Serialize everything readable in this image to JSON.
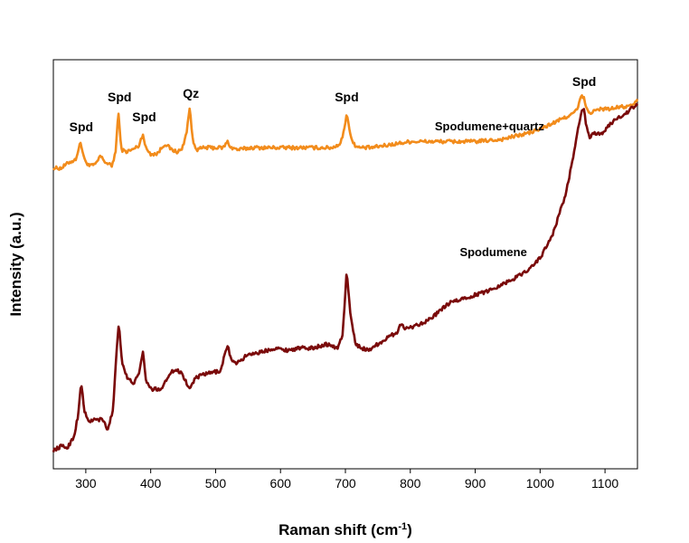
{
  "chart_data": {
    "type": "line",
    "title": "",
    "xlabel": "Raman shift (cm",
    "xlabel_superscript": "-1",
    "xlabel_suffix": ")",
    "ylabel": "Intensity (a.u.)",
    "xlim": [
      250,
      1150
    ],
    "ylim": [
      0,
      100
    ],
    "xticks": [
      300,
      400,
      500,
      600,
      700,
      800,
      900,
      1000,
      1100
    ],
    "yticks_shown": false,
    "grid": false,
    "series": [
      {
        "name": "Spodumene+quartz",
        "color": "#F28C1C",
        "x": [
          250,
          262,
          275,
          284,
          292,
          298,
          306,
          316,
          322,
          330,
          340,
          346,
          350,
          355,
          362,
          372,
          382,
          388,
          392,
          400,
          410,
          422,
          432,
          440,
          448,
          455,
          460,
          465,
          472,
          482,
          495,
          505,
          512,
          518,
          524,
          535,
          555,
          575,
          600,
          625,
          640,
          660,
          680,
          692,
          698,
          702,
          706,
          712,
          720,
          740,
          760,
          780,
          800,
          830,
          860,
          900,
          940,
          980,
          1000,
          1020,
          1040,
          1052,
          1058,
          1063,
          1067,
          1071,
          1076,
          1084,
          1095,
          1110,
          1125,
          1138,
          1143,
          1150
        ],
        "values": [
          73.5,
          73.5,
          75,
          75.5,
          79.8,
          75.5,
          74,
          74.5,
          76.5,
          75,
          74,
          77.5,
          87.3,
          78,
          77.5,
          78,
          79,
          82,
          78.5,
          77,
          77,
          79.5,
          78,
          77.5,
          78,
          82,
          88.3,
          80,
          78,
          78.5,
          78.5,
          78.5,
          78.5,
          80,
          78.5,
          78,
          78.5,
          78.5,
          78.5,
          78.5,
          78.5,
          78.5,
          78.5,
          79.5,
          82.5,
          87.3,
          83,
          79.5,
          78.5,
          78.5,
          79,
          79.5,
          80,
          80,
          80,
          80,
          80.5,
          82,
          83,
          84.5,
          86,
          87,
          88,
          91,
          91,
          88,
          87,
          87.5,
          88,
          88,
          88.5,
          88.5,
          89,
          90
        ]
      },
      {
        "name": "Spodumene",
        "color": "#7A0A0A",
        "x": [
          250,
          262,
          272,
          282,
          288,
          293,
          298,
          304,
          312,
          320,
          326,
          334,
          342,
          348,
          351,
          356,
          364,
          374,
          382,
          388,
          392,
          400,
          408,
          416,
          425,
          432,
          440,
          448,
          455,
          460,
          468,
          480,
          495,
          508,
          514,
          519,
          525,
          535,
          550,
          570,
          590,
          610,
          630,
          650,
          670,
          688,
          696,
          702,
          708,
          716,
          725,
          735,
          745,
          760,
          780,
          785,
          790,
          800,
          815,
          830,
          845,
          860,
          880,
          900,
          920,
          940,
          960,
          980,
          1000,
          1020,
          1040,
          1052,
          1058,
          1063,
          1067,
          1071,
          1076,
          1084,
          1095,
          1110,
          1120,
          1130,
          1140,
          1150
        ],
        "values": [
          4.5,
          5.5,
          5.2,
          8,
          13,
          21,
          14,
          11.5,
          12,
          12,
          12,
          9.5,
          14.5,
          30.5,
          35.5,
          26,
          22,
          21,
          23,
          29,
          22,
          19.5,
          19.5,
          19.5,
          22,
          24,
          24,
          23.5,
          21,
          19.5,
          22,
          23,
          23.5,
          24,
          28,
          30,
          26,
          26,
          28,
          28.5,
          29.5,
          29,
          29.5,
          29.5,
          30.5,
          29.5,
          33,
          48.5,
          37,
          30.5,
          29.5,
          29,
          30,
          31.5,
          33.5,
          35.5,
          34.5,
          34.5,
          35.5,
          36.5,
          38.5,
          40.5,
          41.5,
          42.5,
          43.5,
          45,
          46.5,
          48.5,
          51.5,
          57.5,
          67.5,
          77,
          82.5,
          86.5,
          88.5,
          84,
          81,
          82,
          82,
          84.5,
          86,
          86.5,
          88,
          89
        ]
      }
    ],
    "annotations": [
      {
        "text": "Spd",
        "x": 293,
        "y": 82.5
      },
      {
        "text": "Spd",
        "x": 352,
        "y": 89.8
      },
      {
        "text": "Spd",
        "x": 390,
        "y": 85
      },
      {
        "text": "Qz",
        "x": 462,
        "y": 90.7
      },
      {
        "text": "Spd",
        "x": 702,
        "y": 89.8
      },
      {
        "text": "Spd",
        "x": 1068,
        "y": 93.6
      },
      {
        "text": "Spodumene+quartz",
        "x": 922,
        "y": 82.7
      },
      {
        "text": "Spodumene",
        "x": 928,
        "y": 52
      }
    ]
  }
}
